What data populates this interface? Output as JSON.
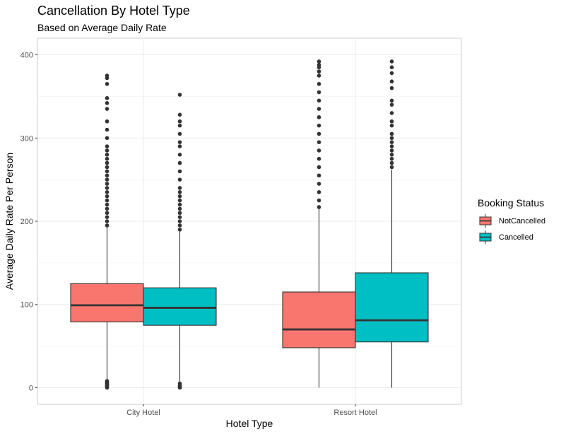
{
  "chart_data": {
    "type": "boxplot",
    "title": "Cancellation By Hotel Type",
    "subtitle": "Based on Average Daily Rate",
    "xlabel": "Hotel Type",
    "ylabel": "Average Daily Rate Per Person",
    "ylim": [
      -20,
      420
    ],
    "yticks": [
      0,
      100,
      200,
      300,
      400
    ],
    "categories": [
      "City Hotel",
      "Resort Hotel"
    ],
    "grid": true,
    "legend": {
      "title": "Booking Status",
      "position": "right"
    },
    "series": [
      {
        "name": "NotCancelled",
        "color": "#F8766D",
        "boxes": [
          {
            "category": "City Hotel",
            "q1": 79,
            "median": 99,
            "q3": 125,
            "whisker_low": 9,
            "whisker_high": 193,
            "outliers": [
              0,
              1,
              2,
              3,
              4,
              5,
              6,
              7,
              8,
              195,
              200,
              205,
              210,
              215,
              220,
              225,
              230,
              235,
              240,
              245,
              250,
              255,
              260,
              265,
              270,
              275,
              280,
              285,
              290,
              300,
              310,
              320,
              335,
              342,
              348,
              365,
              372,
              375
            ]
          },
          {
            "category": "Resort Hotel",
            "q1": 48,
            "median": 70,
            "q3": 115,
            "whisker_low": 0,
            "whisker_high": 215,
            "outliers": [
              217,
              225,
              235,
              245,
              255,
              265,
              275,
              285,
              295,
              305,
              315,
              325,
              335,
              345,
              355,
              365,
              375,
              380,
              385,
              388,
              392
            ]
          }
        ]
      },
      {
        "name": "Cancelled",
        "color": "#00BFC4",
        "boxes": [
          {
            "category": "City Hotel",
            "q1": 75,
            "median": 96,
            "q3": 120,
            "whisker_low": 6,
            "whisker_high": 188,
            "outliers": [
              0,
              1,
              2,
              3,
              5,
              190,
              195,
              200,
              205,
              210,
              215,
              220,
              225,
              230,
              235,
              240,
              250,
              260,
              270,
              280,
              290,
              295,
              305,
              315,
              320,
              328,
              352
            ]
          },
          {
            "category": "Resort Hotel",
            "q1": 55,
            "median": 81,
            "q3": 138,
            "whisker_low": 0,
            "whisker_high": 262,
            "outliers": [
              265,
              270,
              275,
              280,
              285,
              290,
              295,
              300,
              305,
              315,
              320,
              330,
              340,
              345,
              360,
              368,
              378,
              385,
              392
            ]
          }
        ]
      }
    ]
  }
}
